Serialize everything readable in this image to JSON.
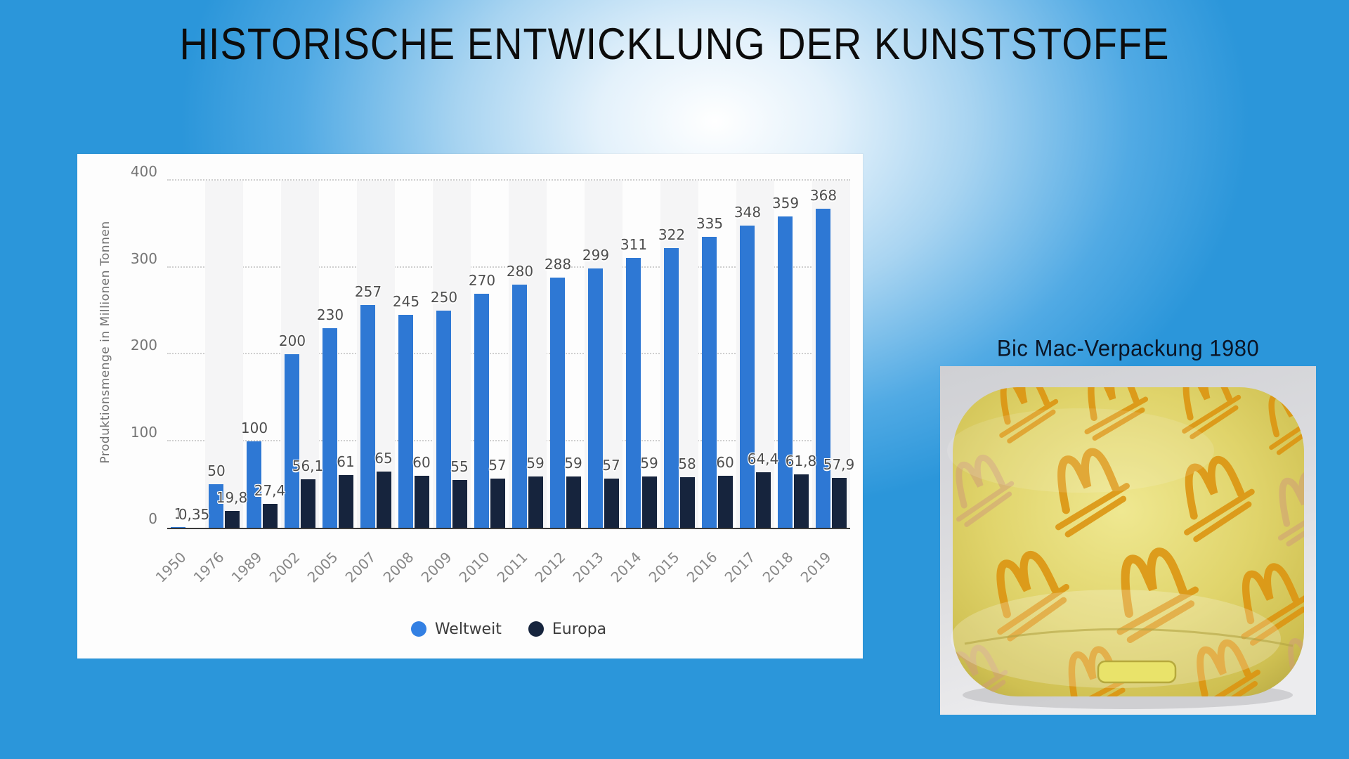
{
  "slide": {
    "title": "HISTORISCHE ENTWICKLUNG DER KUNSTSTOFFE"
  },
  "chart": {
    "ylabel": "Produktionsmenge in Millionen Tonnen",
    "yticks": [
      "0",
      "100",
      "200",
      "300",
      "400"
    ],
    "legend": [
      {
        "label": "Weltweit",
        "color": "#3380e3"
      },
      {
        "label": "Europa",
        "color": "#16243d"
      }
    ]
  },
  "chart_data": {
    "type": "bar",
    "title": "",
    "xlabel": "",
    "ylabel": "Produktionsmenge in Millionen Tonnen",
    "ylim": [
      0,
      400
    ],
    "grid": "horizontal dotted lines every 100",
    "legend_position": "bottom",
    "categories": [
      "1950",
      "1976",
      "1989",
      "2002",
      "2005",
      "2007",
      "2008",
      "2009",
      "2010",
      "2011",
      "2012",
      "2013",
      "2014",
      "2015",
      "2016",
      "2017",
      "2018",
      "2019"
    ],
    "series": [
      {
        "name": "Weltweit",
        "color": "#2e78d4",
        "values": [
          1,
          50,
          100,
          200,
          230,
          257,
          245,
          250,
          270,
          280,
          288,
          299,
          311,
          322,
          335,
          348,
          359,
          368
        ],
        "labels": [
          "1",
          "50",
          "100",
          "200",
          "230",
          "257",
          "245",
          "250",
          "270",
          "280",
          "288",
          "299",
          "311",
          "322",
          "335",
          "348",
          "359",
          "368"
        ]
      },
      {
        "name": "Europa",
        "color": "#16243d",
        "values": [
          0.35,
          19.8,
          27.4,
          56.1,
          61,
          65,
          60,
          55,
          57,
          59,
          59,
          57,
          59,
          58,
          60,
          64.4,
          61.8,
          57.9
        ],
        "labels": [
          "0,35",
          "19,8",
          "27,4",
          "56,1",
          "61",
          "65",
          "60",
          "55",
          "57",
          "59",
          "59",
          "57",
          "59",
          "58",
          "60",
          "64,4",
          "61,8",
          "57,9"
        ]
      }
    ]
  },
  "photo": {
    "caption": "Bic Mac-Verpackung 1980",
    "subject": "yellow styrofoam Big Mac clamshell box with orange McDonald's arches scribble pattern",
    "box_color": "#ddd165",
    "pattern_color": "#dd9511"
  }
}
